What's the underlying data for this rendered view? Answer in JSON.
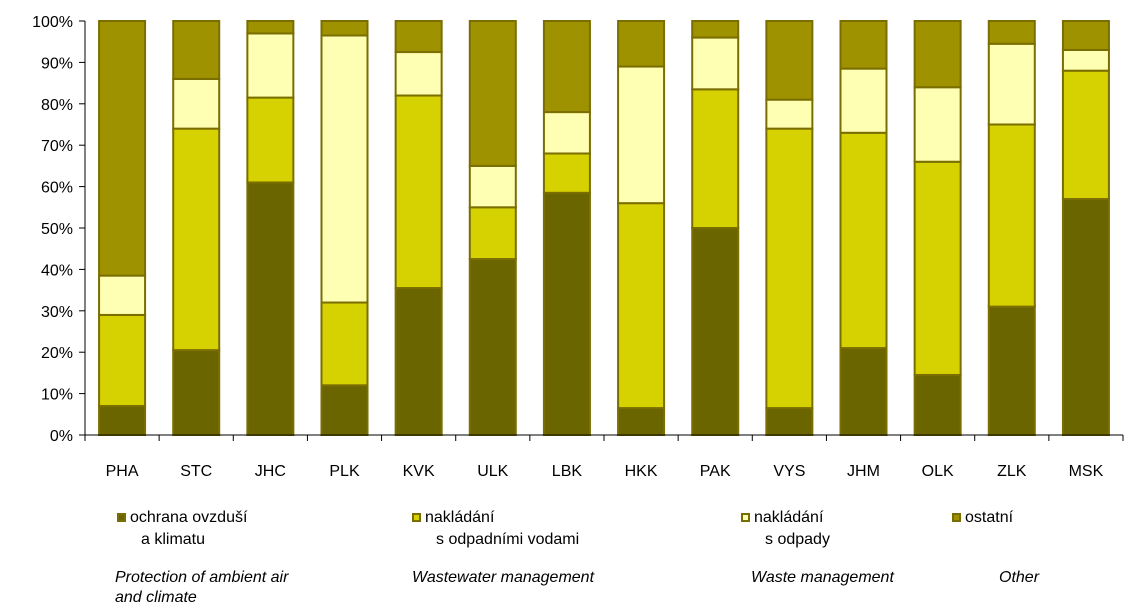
{
  "chart_data": {
    "type": "bar",
    "stacked": true,
    "percent": true,
    "categories": [
      "PHA",
      "STC",
      "JHC",
      "PLK",
      "KVK",
      "ULK",
      "LBK",
      "HKK",
      "PAK",
      "VYS",
      "JHM",
      "OLK",
      "ZLK",
      "MSK"
    ],
    "ylim": [
      0,
      100
    ],
    "yticks": [
      "0%",
      "10%",
      "20%",
      "30%",
      "40%",
      "50%",
      "60%",
      "70%",
      "80%",
      "90%",
      "100%"
    ],
    "grid": false,
    "legend_position": "bottom",
    "series": [
      {
        "name": "ochrana ovzduší a klimatu",
        "name_line1": "ochrana ovzduší",
        "name_line2": "a klimatu",
        "english": "Protection of ambient air and  climate",
        "english_line1": "Protection of ambient air",
        "english_line2": "and  climate",
        "color": "#6b6500",
        "values": [
          7,
          20.5,
          61,
          12,
          35.5,
          42.5,
          58.5,
          6.5,
          50,
          6.5,
          21,
          14.5,
          31,
          57
        ]
      },
      {
        "name": "nakládání s odpadními vodami",
        "name_line1": "nakládání",
        "name_line2": "s odpadními vodami",
        "english": "Wastewater management",
        "color": "#d6d100",
        "values": [
          22,
          53.5,
          20.5,
          20,
          46.5,
          12.5,
          9.5,
          49.5,
          33.5,
          67.5,
          52,
          51.5,
          44,
          31
        ]
      },
      {
        "name": "nakládání s odpady",
        "name_line1": "nakládání",
        "name_line2": "s odpady",
        "english": "Waste management",
        "color": "#ffffb3",
        "values": [
          9.5,
          12,
          15.5,
          64.5,
          10.5,
          10,
          10,
          33,
          12.5,
          7,
          15.5,
          18,
          19.5,
          5
        ]
      },
      {
        "name": "ostatní",
        "name_line1": "ostatní",
        "name_line2": "",
        "english": "Other",
        "color": "#9e9200",
        "values": [
          61.5,
          14,
          3,
          3.5,
          7.5,
          35,
          22,
          11,
          4,
          19,
          11.5,
          16,
          5.5,
          7
        ]
      }
    ]
  },
  "outline_color": "#7a6e00"
}
